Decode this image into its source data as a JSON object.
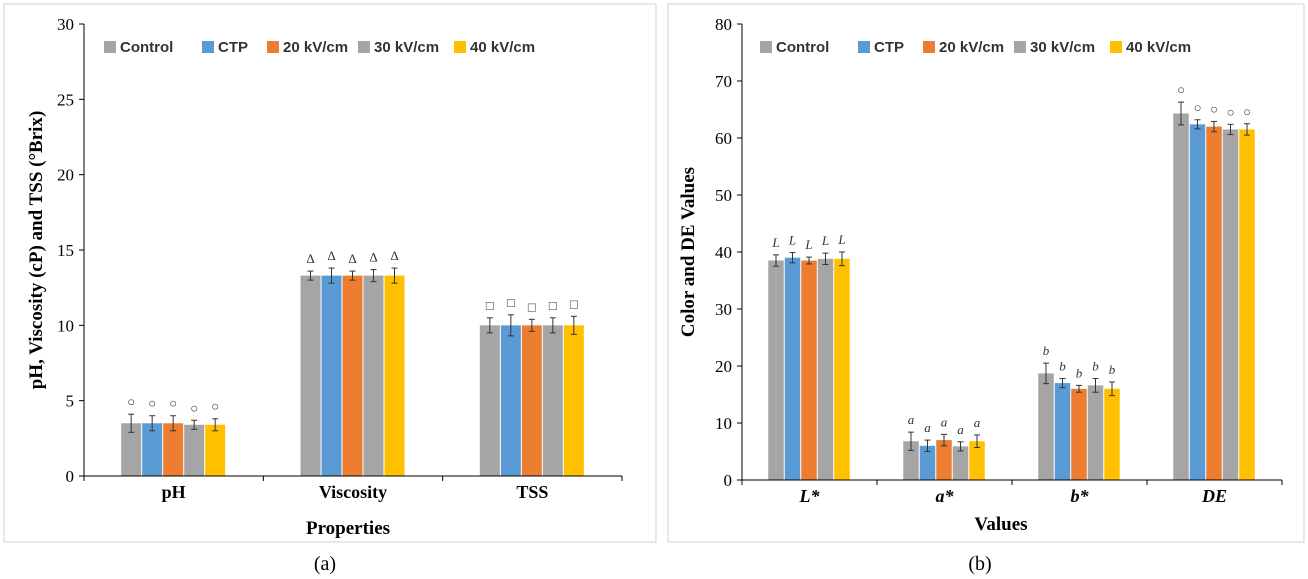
{
  "colors": {
    "control": "#a5a5a5",
    "ctp": "#5b9bd5",
    "kv20": "#ed7d31",
    "kv30": "#a5a5a5",
    "kv40": "#ffc000",
    "frame": "#d0d0d0",
    "axis": "#000000"
  },
  "legend": [
    "Control",
    "CTP",
    "20 kV/cm",
    "30 kV/cm",
    "40 kV/cm"
  ],
  "chart_data": [
    {
      "type": "bar",
      "panel_label": "(a)",
      "ylabel": "pH, Viscosity (cP) and TSS (°Brix)",
      "xlabel": "Properties",
      "ylim": [
        0,
        30
      ],
      "yticks": [
        0,
        5,
        10,
        15,
        20,
        25,
        30
      ],
      "grid": false,
      "legend_position": "top",
      "categories": [
        "pH",
        "Viscosity",
        "TSS"
      ],
      "category_italic": false,
      "series": [
        {
          "name": "Control",
          "values": [
            3.5,
            13.3,
            10.0
          ],
          "errors": [
            0.6,
            0.3,
            0.5
          ]
        },
        {
          "name": "CTP",
          "values": [
            3.5,
            13.3,
            10.0
          ],
          "errors": [
            0.5,
            0.5,
            0.7
          ]
        },
        {
          "name": "20 kV/cm",
          "values": [
            3.5,
            13.3,
            10.0
          ],
          "errors": [
            0.5,
            0.3,
            0.4
          ]
        },
        {
          "name": "30 kV/cm",
          "values": [
            3.4,
            13.3,
            10.0
          ],
          "errors": [
            0.3,
            0.4,
            0.5
          ]
        },
        {
          "name": "40 kV/cm",
          "values": [
            3.4,
            13.3,
            10.0
          ],
          "errors": [
            0.4,
            0.5,
            0.6
          ]
        }
      ],
      "significance": [
        [
          "○",
          "○",
          "○",
          "○",
          "○"
        ],
        [
          "Δ",
          "Δ",
          "Δ",
          "Δ",
          "Δ"
        ],
        [
          "□",
          "□",
          "□",
          "□",
          "□"
        ]
      ]
    },
    {
      "type": "bar",
      "panel_label": "(b)",
      "ylabel": "Color and DE Values",
      "xlabel": "Values",
      "ylim": [
        0,
        80
      ],
      "yticks": [
        0,
        10,
        20,
        30,
        40,
        50,
        60,
        70,
        80
      ],
      "grid": false,
      "legend_position": "top",
      "categories": [
        "L*",
        "a*",
        "b*",
        "DE"
      ],
      "category_italic": true,
      "series": [
        {
          "name": "Control",
          "values": [
            38.5,
            6.8,
            18.7,
            64.3
          ],
          "errors": [
            1.0,
            1.6,
            1.8,
            2.0
          ]
        },
        {
          "name": "CTP",
          "values": [
            39.0,
            6.0,
            17.0,
            62.4
          ],
          "errors": [
            0.9,
            1.0,
            0.8,
            0.8
          ]
        },
        {
          "name": "20 kV/cm",
          "values": [
            38.5,
            7.0,
            16.0,
            62.0
          ],
          "errors": [
            0.6,
            1.0,
            0.6,
            0.9
          ]
        },
        {
          "name": "30 kV/cm",
          "values": [
            38.8,
            5.9,
            16.6,
            61.5
          ],
          "errors": [
            1.0,
            0.8,
            1.2,
            0.9
          ]
        },
        {
          "name": "40 kV/cm",
          "values": [
            38.8,
            6.8,
            16.0,
            61.5
          ],
          "errors": [
            1.2,
            1.1,
            1.2,
            1.0
          ]
        }
      ],
      "significance": [
        [
          "L",
          "L",
          "L",
          "L",
          "L"
        ],
        [
          "a",
          "a",
          "a",
          "a",
          "a"
        ],
        [
          "b",
          "b",
          "b",
          "b",
          "b"
        ],
        [
          "○",
          "○",
          "○",
          "○",
          "○"
        ]
      ]
    }
  ]
}
